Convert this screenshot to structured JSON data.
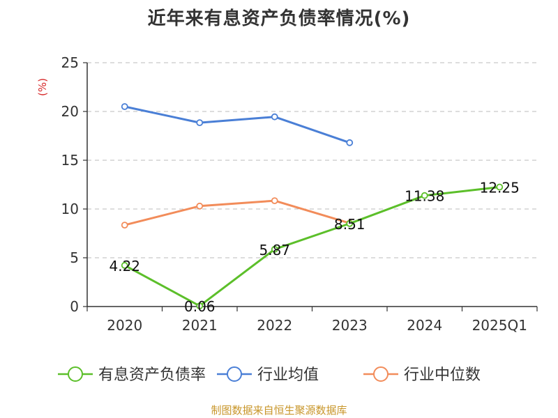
{
  "chart_data": {
    "type": "line",
    "title": "近年来有息资产负债率情况(%)",
    "ylabel": "(%)",
    "xlabel": "",
    "categories": [
      "2020",
      "2021",
      "2022",
      "2023",
      "2024",
      "2025Q1"
    ],
    "ylim": [
      0,
      25
    ],
    "yticks": [
      0,
      5,
      10,
      15,
      20,
      25
    ],
    "grid": true,
    "legend_position": "bottom",
    "series": [
      {
        "name": "有息资产负债率",
        "color": "#5cbf2a",
        "values": [
          4.22,
          0.06,
          5.87,
          8.51,
          11.38,
          12.25
        ],
        "data_labels": [
          "4.22",
          "0.06",
          "5.87",
          "8.51",
          "11.38",
          "12.25"
        ]
      },
      {
        "name": "行业均值",
        "color": "#4a7fd6",
        "values": [
          20.5,
          18.85,
          19.45,
          16.8,
          null,
          null
        ]
      },
      {
        "name": "行业中位数",
        "color": "#f28c5a",
        "values": [
          8.35,
          10.3,
          10.85,
          8.55,
          null,
          null
        ]
      }
    ]
  },
  "footer": {
    "source": "制图数据来自恒生聚源数据库"
  },
  "colors": {
    "axis": "#333333",
    "grid": "#bbbbbb",
    "ylabel": "#d62728",
    "source": "#c8962a"
  }
}
